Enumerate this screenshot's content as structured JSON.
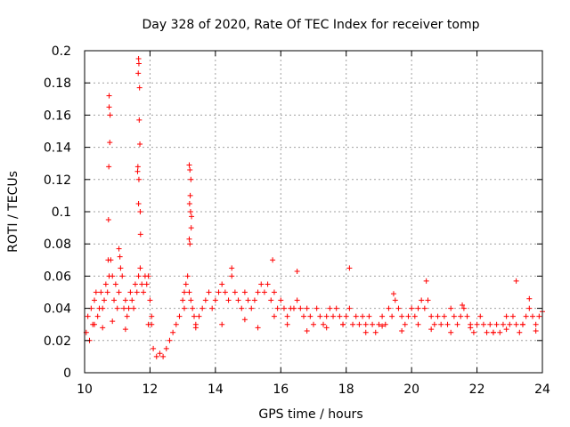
{
  "chart_data": {
    "type": "scatter",
    "title": "Day 328 of 2020, Rate Of TEC Index for receiver tomp",
    "xlabel": "GPS time / hours",
    "ylabel": "ROTI / TECUs",
    "xlim": [
      10,
      24
    ],
    "ylim": [
      0,
      0.2
    ],
    "xticks": [
      "10",
      "12",
      "14",
      "16",
      "18",
      "20",
      "22",
      "24"
    ],
    "yticks": [
      "0",
      "0.02",
      "0.04",
      "0.06",
      "0.08",
      "0.1",
      "0.12",
      "0.14",
      "0.16",
      "0.18",
      "0.2"
    ],
    "grid": true,
    "marker": "+",
    "color": "#ff0000",
    "series": [
      {
        "x": [
          10.05,
          10.1,
          10.15,
          10.2,
          10.25,
          10.3,
          10.35,
          10.4,
          10.45,
          10.5,
          10.55,
          10.6,
          10.65,
          10.7,
          10.75,
          10.8,
          10.85,
          10.9,
          10.95,
          11.0,
          11.05,
          11.1,
          11.15,
          11.2,
          11.25,
          11.3,
          11.35,
          11.4,
          11.45,
          11.5,
          11.55,
          11.6,
          11.65,
          11.7,
          11.75,
          11.8,
          11.85,
          11.9,
          11.95,
          12.0,
          12.05,
          12.1,
          12.2,
          12.3,
          12.4,
          12.5,
          12.6,
          12.7,
          12.8,
          12.9,
          13.0,
          13.05,
          13.1,
          13.15,
          13.2,
          13.25,
          13.3,
          13.35,
          13.4,
          13.5,
          13.6,
          13.7,
          13.8,
          13.9,
          14.0,
          14.1,
          14.2,
          14.3,
          14.4,
          14.5,
          14.6,
          14.7,
          14.8,
          14.9,
          15.0,
          15.1,
          15.2,
          15.3,
          15.4,
          15.5,
          15.6,
          15.7,
          15.8,
          15.9,
          16.0,
          16.1,
          16.2,
          16.3,
          16.4,
          16.5,
          16.6,
          16.7,
          16.8,
          16.9,
          17.0,
          17.1,
          17.2,
          17.3,
          17.4,
          17.5,
          17.6,
          17.7,
          17.8,
          17.9,
          18.0,
          18.1,
          18.2,
          18.3,
          18.4,
          18.5,
          18.6,
          18.7,
          18.8,
          18.9,
          19.0,
          19.1,
          19.2,
          19.3,
          19.4,
          19.5,
          19.6,
          19.7,
          19.8,
          19.9,
          20.0,
          20.1,
          20.2,
          20.3,
          20.4,
          20.5,
          20.6,
          20.7,
          20.8,
          20.9,
          21.0,
          21.1,
          21.2,
          21.3,
          21.4,
          21.5,
          21.6,
          21.7,
          21.8,
          21.9,
          22.0,
          22.1,
          22.2,
          22.3,
          22.4,
          22.5,
          22.6,
          22.7,
          22.8,
          22.9,
          23.0,
          23.1,
          23.2,
          23.3,
          23.4,
          23.5,
          23.6,
          23.7,
          23.8,
          23.9,
          24.0,
          10.75,
          10.75,
          10.78,
          10.77,
          10.74,
          10.73,
          10.72,
          11.65,
          11.66,
          11.64,
          11.68,
          11.67,
          11.69,
          11.63,
          11.62,
          11.66,
          11.7,
          11.71,
          11.65,
          13.2,
          13.22,
          13.25,
          13.23,
          13.21,
          13.24,
          13.27,
          13.26,
          13.2,
          13.22,
          11.05,
          11.08,
          14.5,
          15.75,
          16.5,
          18.1,
          19.45,
          20.45,
          21.55,
          23.2,
          23.6,
          10.3,
          10.55,
          10.85,
          11.25,
          11.95,
          12.05,
          13.05,
          13.4,
          14.2,
          14.9,
          15.3,
          15.8,
          16.2,
          16.8,
          17.4,
          17.9,
          18.6,
          19.1,
          19.7,
          20.2,
          20.6,
          21.2,
          21.8,
          22.5,
          22.9,
          23.4,
          23.8
        ],
        "y": [
          0.025,
          0.035,
          0.02,
          0.04,
          0.03,
          0.045,
          0.05,
          0.035,
          0.04,
          0.05,
          0.04,
          0.045,
          0.055,
          0.05,
          0.06,
          0.07,
          0.06,
          0.045,
          0.055,
          0.04,
          0.05,
          0.065,
          0.06,
          0.04,
          0.045,
          0.035,
          0.04,
          0.05,
          0.045,
          0.04,
          0.055,
          0.05,
          0.06,
          0.065,
          0.055,
          0.05,
          0.06,
          0.055,
          0.06,
          0.045,
          0.03,
          0.015,
          0.01,
          0.012,
          0.01,
          0.015,
          0.02,
          0.025,
          0.03,
          0.035,
          0.045,
          0.05,
          0.055,
          0.06,
          0.05,
          0.045,
          0.04,
          0.035,
          0.03,
          0.035,
          0.04,
          0.045,
          0.05,
          0.04,
          0.045,
          0.05,
          0.055,
          0.05,
          0.045,
          0.06,
          0.05,
          0.045,
          0.04,
          0.05,
          0.045,
          0.04,
          0.045,
          0.05,
          0.055,
          0.05,
          0.055,
          0.045,
          0.05,
          0.04,
          0.045,
          0.04,
          0.035,
          0.04,
          0.04,
          0.045,
          0.04,
          0.035,
          0.04,
          0.035,
          0.03,
          0.04,
          0.035,
          0.03,
          0.035,
          0.04,
          0.035,
          0.04,
          0.035,
          0.03,
          0.035,
          0.04,
          0.03,
          0.035,
          0.03,
          0.035,
          0.03,
          0.035,
          0.03,
          0.025,
          0.03,
          0.035,
          0.03,
          0.04,
          0.035,
          0.045,
          0.04,
          0.035,
          0.03,
          0.035,
          0.04,
          0.035,
          0.04,
          0.045,
          0.04,
          0.045,
          0.035,
          0.03,
          0.035,
          0.03,
          0.035,
          0.03,
          0.04,
          0.035,
          0.03,
          0.035,
          0.04,
          0.035,
          0.03,
          0.025,
          0.03,
          0.035,
          0.03,
          0.025,
          0.03,
          0.025,
          0.03,
          0.025,
          0.03,
          0.035,
          0.03,
          0.035,
          0.03,
          0.025,
          0.03,
          0.035,
          0.04,
          0.035,
          0.03,
          0.035,
          0.038,
          0.172,
          0.165,
          0.16,
          0.143,
          0.128,
          0.095,
          0.07,
          0.195,
          0.192,
          0.186,
          0.177,
          0.157,
          0.142,
          0.128,
          0.125,
          0.12,
          0.1,
          0.086,
          0.105,
          0.129,
          0.126,
          0.12,
          0.11,
          0.105,
          0.1,
          0.097,
          0.09,
          0.083,
          0.08,
          0.077,
          0.072,
          0.065,
          0.07,
          0.063,
          0.065,
          0.049,
          0.057,
          0.042,
          0.057,
          0.046,
          0.03,
          0.028,
          0.032,
          0.027,
          0.03,
          0.035,
          0.04,
          0.028,
          0.03,
          0.033,
          0.028,
          0.035,
          0.03,
          0.026,
          0.028,
          0.03,
          0.025,
          0.029,
          0.026,
          0.03,
          0.027,
          0.025,
          0.028,
          0.025,
          0.027,
          0.03,
          0.026
        ]
      }
    ]
  }
}
